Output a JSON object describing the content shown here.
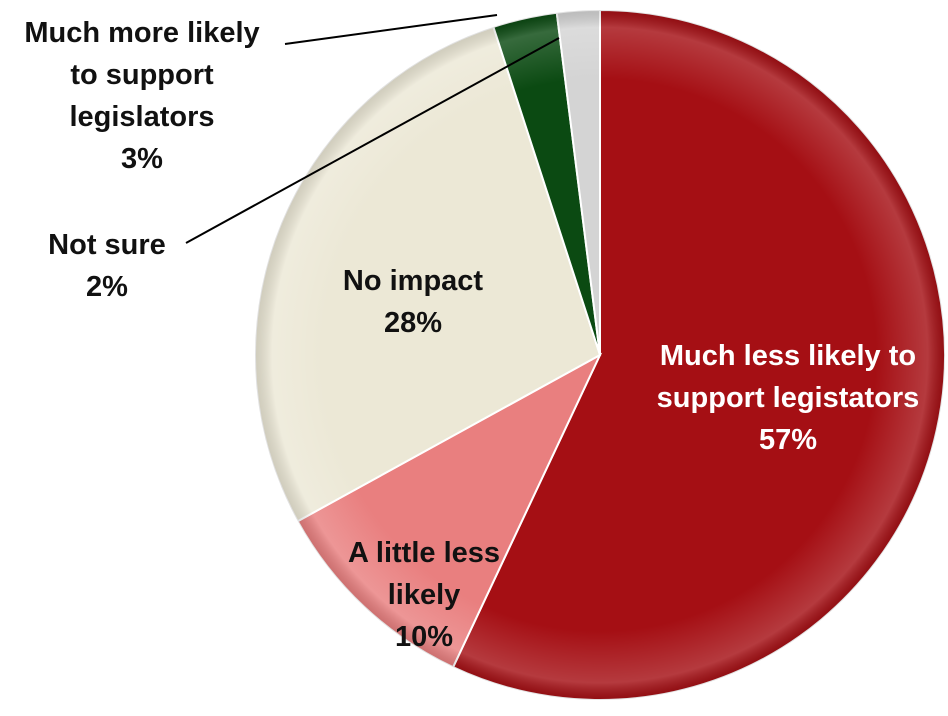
{
  "chart_data": {
    "type": "pie",
    "title": "",
    "start": "12 o'clock",
    "direction": "clockwise",
    "slices": [
      {
        "label_lines": [
          "Much less likely to",
          "support legistators"
        ],
        "value": 57,
        "value_label": "57%",
        "color": "#a50f14",
        "label_color": "#ffffff",
        "label_position": "inside"
      },
      {
        "label_lines": [
          "A little less",
          "likely"
        ],
        "value": 10,
        "value_label": "10%",
        "color": "#e97f7f",
        "label_color": "#111111",
        "label_position": "inside"
      },
      {
        "label_lines": [
          "No impact"
        ],
        "value": 28,
        "value_label": "28%",
        "color": "#ece8d6",
        "label_color": "#111111",
        "label_position": "inside"
      },
      {
        "label_lines": [
          "Much more likely",
          "to support",
          "legislators"
        ],
        "value": 3,
        "value_label": "3%",
        "color": "#0b4a12",
        "label_color": "#111111",
        "label_position": "outside-leader"
      },
      {
        "label_lines": [
          "Not sure"
        ],
        "value": 2,
        "value_label": "2%",
        "color": "#d4d4d4",
        "label_color": "#111111",
        "label_position": "outside-leader"
      }
    ]
  }
}
